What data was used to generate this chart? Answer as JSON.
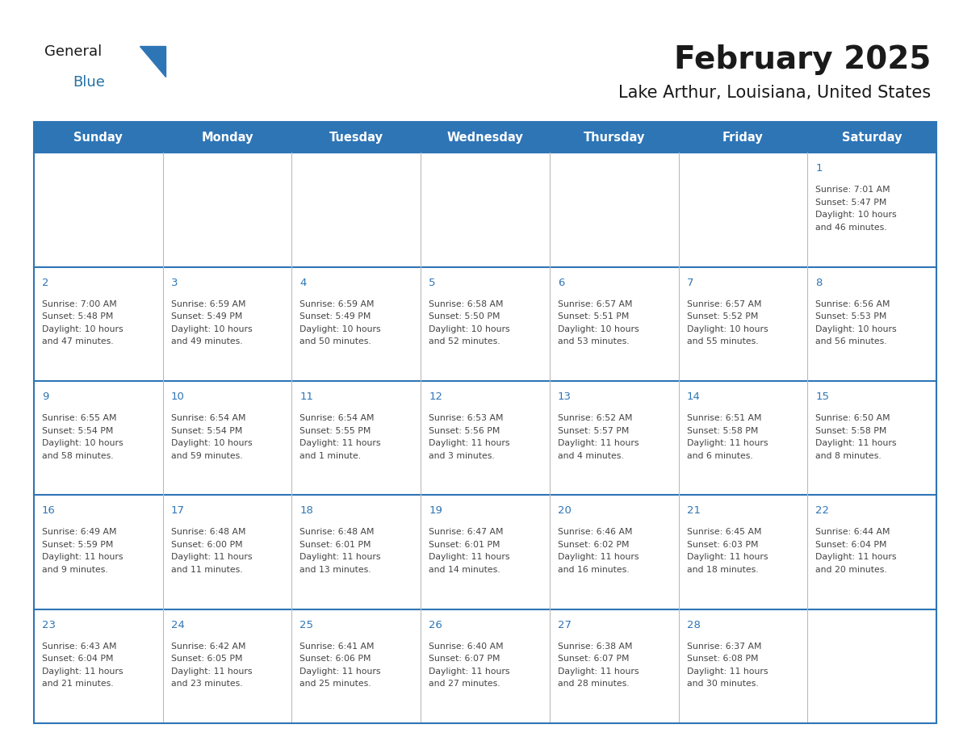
{
  "title": "February 2025",
  "subtitle": "Lake Arthur, Louisiana, United States",
  "header_bg_color": "#2E75B6",
  "header_text_color": "#FFFFFF",
  "cell_bg_color": "#FFFFFF",
  "cell_text_color": "#444444",
  "day_number_color": "#2E75B6",
  "grid_line_color": "#2E75B6",
  "row_sep_color": "#2E75B6",
  "col_sep_color": "#AAAAAA",
  "background_color": "#FFFFFF",
  "days_of_week": [
    "Sunday",
    "Monday",
    "Tuesday",
    "Wednesday",
    "Thursday",
    "Friday",
    "Saturday"
  ],
  "calendar_data": [
    [
      null,
      null,
      null,
      null,
      null,
      null,
      {
        "day": 1,
        "sunrise": "7:01 AM",
        "sunset": "5:47 PM",
        "daylight": "10 hours",
        "daylight2": "and 46 minutes."
      }
    ],
    [
      {
        "day": 2,
        "sunrise": "7:00 AM",
        "sunset": "5:48 PM",
        "daylight": "10 hours",
        "daylight2": "and 47 minutes."
      },
      {
        "day": 3,
        "sunrise": "6:59 AM",
        "sunset": "5:49 PM",
        "daylight": "10 hours",
        "daylight2": "and 49 minutes."
      },
      {
        "day": 4,
        "sunrise": "6:59 AM",
        "sunset": "5:49 PM",
        "daylight": "10 hours",
        "daylight2": "and 50 minutes."
      },
      {
        "day": 5,
        "sunrise": "6:58 AM",
        "sunset": "5:50 PM",
        "daylight": "10 hours",
        "daylight2": "and 52 minutes."
      },
      {
        "day": 6,
        "sunrise": "6:57 AM",
        "sunset": "5:51 PM",
        "daylight": "10 hours",
        "daylight2": "and 53 minutes."
      },
      {
        "day": 7,
        "sunrise": "6:57 AM",
        "sunset": "5:52 PM",
        "daylight": "10 hours",
        "daylight2": "and 55 minutes."
      },
      {
        "day": 8,
        "sunrise": "6:56 AM",
        "sunset": "5:53 PM",
        "daylight": "10 hours",
        "daylight2": "and 56 minutes."
      }
    ],
    [
      {
        "day": 9,
        "sunrise": "6:55 AM",
        "sunset": "5:54 PM",
        "daylight": "10 hours",
        "daylight2": "and 58 minutes."
      },
      {
        "day": 10,
        "sunrise": "6:54 AM",
        "sunset": "5:54 PM",
        "daylight": "10 hours",
        "daylight2": "and 59 minutes."
      },
      {
        "day": 11,
        "sunrise": "6:54 AM",
        "sunset": "5:55 PM",
        "daylight": "11 hours",
        "daylight2": "and 1 minute."
      },
      {
        "day": 12,
        "sunrise": "6:53 AM",
        "sunset": "5:56 PM",
        "daylight": "11 hours",
        "daylight2": "and 3 minutes."
      },
      {
        "day": 13,
        "sunrise": "6:52 AM",
        "sunset": "5:57 PM",
        "daylight": "11 hours",
        "daylight2": "and 4 minutes."
      },
      {
        "day": 14,
        "sunrise": "6:51 AM",
        "sunset": "5:58 PM",
        "daylight": "11 hours",
        "daylight2": "and 6 minutes."
      },
      {
        "day": 15,
        "sunrise": "6:50 AM",
        "sunset": "5:58 PM",
        "daylight": "11 hours",
        "daylight2": "and 8 minutes."
      }
    ],
    [
      {
        "day": 16,
        "sunrise": "6:49 AM",
        "sunset": "5:59 PM",
        "daylight": "11 hours",
        "daylight2": "and 9 minutes."
      },
      {
        "day": 17,
        "sunrise": "6:48 AM",
        "sunset": "6:00 PM",
        "daylight": "11 hours",
        "daylight2": "and 11 minutes."
      },
      {
        "day": 18,
        "sunrise": "6:48 AM",
        "sunset": "6:01 PM",
        "daylight": "11 hours",
        "daylight2": "and 13 minutes."
      },
      {
        "day": 19,
        "sunrise": "6:47 AM",
        "sunset": "6:01 PM",
        "daylight": "11 hours",
        "daylight2": "and 14 minutes."
      },
      {
        "day": 20,
        "sunrise": "6:46 AM",
        "sunset": "6:02 PM",
        "daylight": "11 hours",
        "daylight2": "and 16 minutes."
      },
      {
        "day": 21,
        "sunrise": "6:45 AM",
        "sunset": "6:03 PM",
        "daylight": "11 hours",
        "daylight2": "and 18 minutes."
      },
      {
        "day": 22,
        "sunrise": "6:44 AM",
        "sunset": "6:04 PM",
        "daylight": "11 hours",
        "daylight2": "and 20 minutes."
      }
    ],
    [
      {
        "day": 23,
        "sunrise": "6:43 AM",
        "sunset": "6:04 PM",
        "daylight": "11 hours",
        "daylight2": "and 21 minutes."
      },
      {
        "day": 24,
        "sunrise": "6:42 AM",
        "sunset": "6:05 PM",
        "daylight": "11 hours",
        "daylight2": "and 23 minutes."
      },
      {
        "day": 25,
        "sunrise": "6:41 AM",
        "sunset": "6:06 PM",
        "daylight": "11 hours",
        "daylight2": "and 25 minutes."
      },
      {
        "day": 26,
        "sunrise": "6:40 AM",
        "sunset": "6:07 PM",
        "daylight": "11 hours",
        "daylight2": "and 27 minutes."
      },
      {
        "day": 27,
        "sunrise": "6:38 AM",
        "sunset": "6:07 PM",
        "daylight": "11 hours",
        "daylight2": "and 28 minutes."
      },
      {
        "day": 28,
        "sunrise": "6:37 AM",
        "sunset": "6:08 PM",
        "daylight": "11 hours",
        "daylight2": "and 30 minutes."
      },
      null
    ]
  ]
}
